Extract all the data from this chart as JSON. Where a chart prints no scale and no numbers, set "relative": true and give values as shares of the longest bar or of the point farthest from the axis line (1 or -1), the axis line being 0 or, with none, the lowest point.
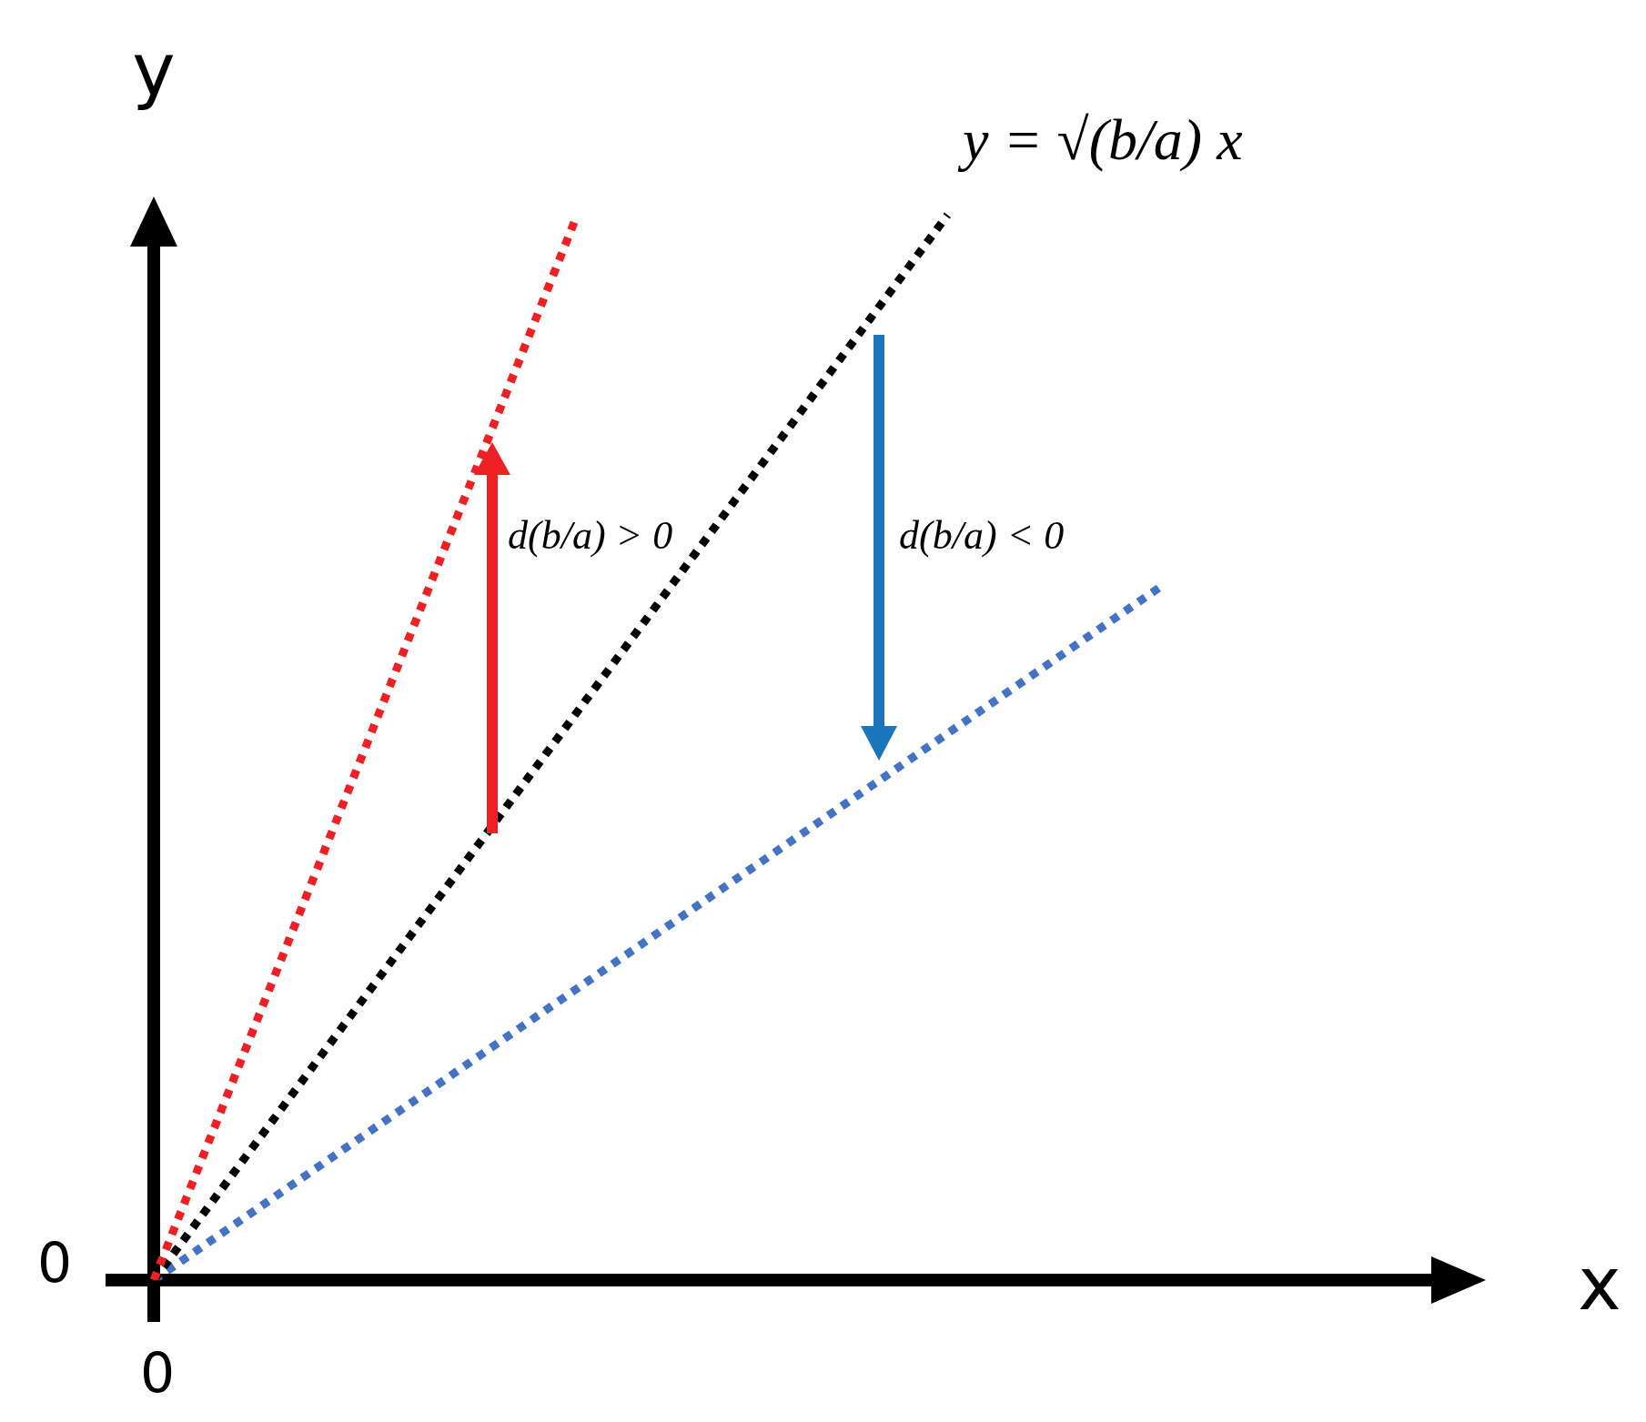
{
  "chart_data": {
    "type": "line",
    "relative": true,
    "xlabel": "x",
    "ylabel": "y",
    "legend": false,
    "line_style": "dotted",
    "marker": "none",
    "categories": [
      null,
      null,
      null,
      null,
      null,
      null,
      null,
      null,
      null,
      null,
      null,
      null,
      null,
      null,
      null,
      null,
      null,
      null,
      null,
      null,
      null,
      null,
      null,
      null,
      null,
      null
    ],
    "series": [
      {
        "color": "#ee2024",
        "values": [
          0,
          null,
          null,
          null,
          null,
          null,
          null,
          null,
          1,
          null,
          null,
          null,
          null,
          null,
          null,
          null,
          null,
          null,
          null,
          null,
          null,
          null,
          null,
          null,
          null,
          null
        ]
      },
      {
        "color": "#000000",
        "values": [
          0,
          null,
          null,
          null,
          null,
          null,
          null,
          null,
          null,
          null,
          null,
          null,
          null,
          null,
          null,
          1,
          null,
          null,
          null,
          null,
          null,
          null,
          null,
          null,
          null,
          null
        ]
      },
      {
        "color": "#4472c4",
        "values": [
          0,
          null,
          null,
          null,
          null,
          null,
          null,
          null,
          null,
          null,
          null,
          null,
          null,
          null,
          null,
          null,
          null,
          null,
          null,
          0.65,
          null,
          null,
          null,
          null,
          null,
          null
        ]
      }
    ],
    "annotations": [
      "0",
      "0",
      "y = √(b/a) x",
      "d(b/a) > 0",
      "d(b/a) < 0"
    ]
  }
}
